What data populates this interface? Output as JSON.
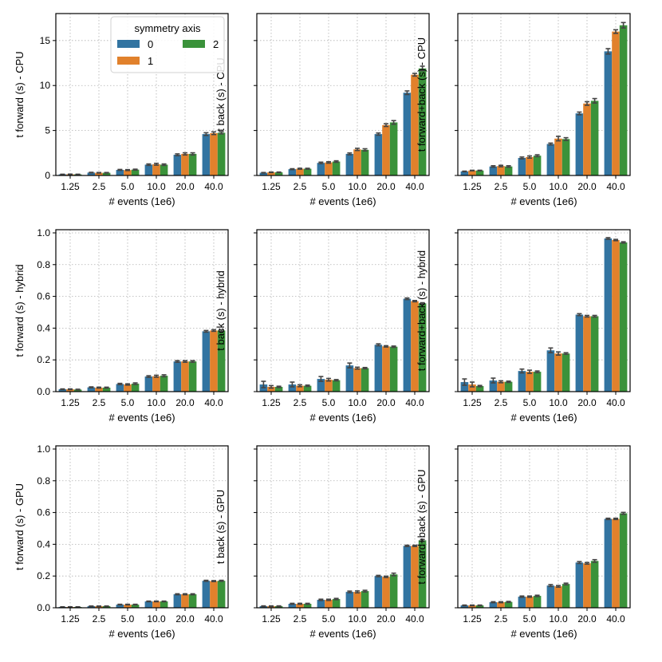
{
  "colors": {
    "0": "#3274a1",
    "1": "#e1812c",
    "2": "#3a923a",
    "errorbar": "#444444",
    "grid": "#b0b0b0"
  },
  "legend": {
    "title": "symmetry axis",
    "entries": [
      "0",
      "1",
      "2"
    ]
  },
  "chart_data": [
    {
      "type": "bar",
      "panel": "row1-col1",
      "title": "",
      "xlabel": "# events (1e6)",
      "ylabel": "t forward (s) - CPU",
      "categories": [
        "1.25",
        "2.5",
        "5.0",
        "10.0",
        "20.0",
        "40.0"
      ],
      "ylim": [
        0,
        18
      ],
      "yticks": [
        0,
        5,
        10,
        15
      ],
      "ytick_labels": [
        "0",
        "5",
        "10",
        "15"
      ],
      "series": [
        {
          "name": "0",
          "values": [
            0.12,
            0.32,
            0.62,
            1.2,
            2.3,
            4.6
          ],
          "err": [
            0.02,
            0.03,
            0.05,
            0.08,
            0.1,
            0.15
          ]
        },
        {
          "name": "1",
          "values": [
            0.13,
            0.3,
            0.6,
            1.25,
            2.4,
            4.7
          ],
          "err": [
            0.02,
            0.03,
            0.05,
            0.1,
            0.12,
            0.15
          ]
        },
        {
          "name": "2",
          "values": [
            0.12,
            0.3,
            0.65,
            1.2,
            2.4,
            4.75
          ],
          "err": [
            0.02,
            0.03,
            0.05,
            0.08,
            0.12,
            0.12
          ]
        }
      ]
    },
    {
      "type": "bar",
      "panel": "row1-col2",
      "title": "",
      "xlabel": "# events (1e6)",
      "ylabel": "t back (s) - CPU",
      "categories": [
        "1.25",
        "2.5",
        "5.0",
        "10.0",
        "20.0",
        "40.0"
      ],
      "ylim": [
        0,
        18
      ],
      "yticks": [
        0,
        5,
        10,
        15
      ],
      "ytick_labels": [],
      "series": [
        {
          "name": "0",
          "values": [
            0.3,
            0.7,
            1.4,
            2.4,
            4.6,
            9.2
          ],
          "err": [
            0.03,
            0.05,
            0.08,
            0.1,
            0.12,
            0.2
          ]
        },
        {
          "name": "1",
          "values": [
            0.35,
            0.75,
            1.45,
            2.9,
            5.6,
            11.2
          ],
          "err": [
            0.03,
            0.05,
            0.08,
            0.12,
            0.15,
            0.15
          ]
        },
        {
          "name": "2",
          "values": [
            0.35,
            0.75,
            1.55,
            2.85,
            5.9,
            11.9
          ],
          "err": [
            0.03,
            0.05,
            0.08,
            0.12,
            0.2,
            0.25
          ]
        }
      ]
    },
    {
      "type": "bar",
      "panel": "row1-col3",
      "title": "",
      "xlabel": "# events (1e6)",
      "ylabel": "t forward+back (s) - CPU",
      "categories": [
        "1.25",
        "2.5",
        "5.0",
        "10.0",
        "20.0",
        "40.0"
      ],
      "ylim": [
        0,
        18
      ],
      "yticks": [
        0,
        5,
        10,
        15
      ],
      "ytick_labels": [],
      "series": [
        {
          "name": "0",
          "values": [
            0.45,
            1.0,
            1.95,
            3.5,
            6.9,
            13.8
          ],
          "err": [
            0.03,
            0.08,
            0.1,
            0.1,
            0.15,
            0.3
          ]
        },
        {
          "name": "1",
          "values": [
            0.55,
            1.05,
            2.05,
            4.1,
            8.0,
            16.0
          ],
          "err": [
            0.03,
            0.08,
            0.12,
            0.25,
            0.2,
            0.2
          ]
        },
        {
          "name": "2",
          "values": [
            0.55,
            1.0,
            2.2,
            4.05,
            8.3,
            16.7
          ],
          "err": [
            0.03,
            0.08,
            0.1,
            0.15,
            0.25,
            0.3
          ]
        }
      ]
    },
    {
      "type": "bar",
      "panel": "row2-col1",
      "title": "",
      "xlabel": "# events (1e6)",
      "ylabel": "t forward (s) - hybrid",
      "categories": [
        "1.25",
        "2.5",
        "5.0",
        "10.0",
        "20.0",
        "40.0"
      ],
      "ylim": [
        0,
        1.02
      ],
      "yticks": [
        0,
        0.2,
        0.4,
        0.6,
        0.8,
        1.0
      ],
      "ytick_labels": [
        "0.0",
        "0.2",
        "0.4",
        "0.6",
        "0.8",
        "1.0"
      ],
      "series": [
        {
          "name": "0",
          "values": [
            0.015,
            0.027,
            0.048,
            0.095,
            0.19,
            0.38
          ],
          "err": [
            0.002,
            0.003,
            0.004,
            0.005,
            0.005,
            0.005
          ]
        },
        {
          "name": "1",
          "values": [
            0.015,
            0.025,
            0.045,
            0.097,
            0.19,
            0.385
          ],
          "err": [
            0.002,
            0.003,
            0.004,
            0.006,
            0.005,
            0.005
          ]
        },
        {
          "name": "2",
          "values": [
            0.013,
            0.025,
            0.05,
            0.1,
            0.19,
            0.385
          ],
          "err": [
            0.002,
            0.003,
            0.005,
            0.006,
            0.005,
            0.005
          ]
        }
      ]
    },
    {
      "type": "bar",
      "panel": "row2-col2",
      "title": "",
      "xlabel": "# events (1e6)",
      "ylabel": "t back (s) - hybrid",
      "categories": [
        "1.25",
        "2.5",
        "5.0",
        "10.0",
        "20.0",
        "40.0"
      ],
      "ylim": [
        0,
        1.02
      ],
      "yticks": [
        0,
        0.2,
        0.4,
        0.6,
        0.8,
        1.0
      ],
      "ytick_labels": [],
      "series": [
        {
          "name": "0",
          "values": [
            0.045,
            0.045,
            0.08,
            0.165,
            0.295,
            0.585
          ],
          "err": [
            0.02,
            0.015,
            0.015,
            0.015,
            0.006,
            0.005
          ]
        },
        {
          "name": "1",
          "values": [
            0.03,
            0.037,
            0.075,
            0.148,
            0.285,
            0.57
          ],
          "err": [
            0.008,
            0.006,
            0.008,
            0.006,
            0.004,
            0.004
          ]
        },
        {
          "name": "2",
          "values": [
            0.03,
            0.037,
            0.072,
            0.148,
            0.283,
            0.556
          ],
          "err": [
            0.004,
            0.004,
            0.004,
            0.004,
            0.004,
            0.004
          ]
        }
      ]
    },
    {
      "type": "bar",
      "panel": "row2-col3",
      "title": "",
      "xlabel": "# events (1e6)",
      "ylabel": "t forward+back (s) - hybrid",
      "categories": [
        "1.25",
        "2.5",
        "5.0",
        "10.0",
        "20.0",
        "40.0"
      ],
      "ylim": [
        0,
        1.02
      ],
      "yticks": [
        0,
        0.2,
        0.4,
        0.6,
        0.8,
        1.0
      ],
      "ytick_labels": [],
      "series": [
        {
          "name": "0",
          "values": [
            0.06,
            0.07,
            0.13,
            0.26,
            0.485,
            0.965
          ],
          "err": [
            0.02,
            0.015,
            0.012,
            0.015,
            0.006,
            0.005
          ]
        },
        {
          "name": "1",
          "values": [
            0.045,
            0.062,
            0.125,
            0.24,
            0.475,
            0.955
          ],
          "err": [
            0.015,
            0.006,
            0.01,
            0.01,
            0.005,
            0.004
          ]
        },
        {
          "name": "2",
          "values": [
            0.035,
            0.062,
            0.125,
            0.24,
            0.475,
            0.94
          ],
          "err": [
            0.004,
            0.004,
            0.005,
            0.005,
            0.005,
            0.004
          ]
        }
      ]
    },
    {
      "type": "bar",
      "panel": "row3-col1",
      "title": "",
      "xlabel": "# events (1e6)",
      "ylabel": "t forward (s) - GPU",
      "categories": [
        "1.25",
        "2.5",
        "5.0",
        "10.0",
        "20.0",
        "40.0"
      ],
      "ylim": [
        0,
        1.02
      ],
      "yticks": [
        0,
        0.2,
        0.4,
        0.6,
        0.8,
        1.0
      ],
      "ytick_labels": [
        "0.0",
        "0.2",
        "0.4",
        "0.6",
        "0.8",
        "1.0"
      ],
      "series": [
        {
          "name": "0",
          "values": [
            0.005,
            0.01,
            0.02,
            0.04,
            0.085,
            0.17
          ],
          "err": [
            0.001,
            0.001,
            0.002,
            0.002,
            0.003,
            0.003
          ]
        },
        {
          "name": "1",
          "values": [
            0.005,
            0.01,
            0.02,
            0.04,
            0.085,
            0.168
          ],
          "err": [
            0.001,
            0.001,
            0.002,
            0.002,
            0.003,
            0.003
          ]
        },
        {
          "name": "2",
          "values": [
            0.005,
            0.01,
            0.02,
            0.04,
            0.085,
            0.17
          ],
          "err": [
            0.001,
            0.001,
            0.002,
            0.002,
            0.003,
            0.003
          ]
        }
      ]
    },
    {
      "type": "bar",
      "panel": "row3-col2",
      "title": "",
      "xlabel": "# events (1e6)",
      "ylabel": "t back (s) - GPU",
      "categories": [
        "1.25",
        "2.5",
        "5.0",
        "10.0",
        "20.0",
        "40.0"
      ],
      "ylim": [
        0,
        1.02
      ],
      "yticks": [
        0,
        0.2,
        0.4,
        0.6,
        0.8,
        1.0
      ],
      "ytick_labels": [],
      "series": [
        {
          "name": "0",
          "values": [
            0.01,
            0.025,
            0.05,
            0.1,
            0.2,
            0.39
          ],
          "err": [
            0.002,
            0.003,
            0.004,
            0.005,
            0.004,
            0.004
          ]
        },
        {
          "name": "1",
          "values": [
            0.01,
            0.025,
            0.05,
            0.1,
            0.195,
            0.39
          ],
          "err": [
            0.002,
            0.003,
            0.004,
            0.006,
            0.004,
            0.004
          ]
        },
        {
          "name": "2",
          "values": [
            0.01,
            0.025,
            0.055,
            0.105,
            0.21,
            0.425
          ],
          "err": [
            0.002,
            0.003,
            0.004,
            0.005,
            0.008,
            0.006
          ]
        }
      ]
    },
    {
      "type": "bar",
      "panel": "row3-col3",
      "title": "",
      "xlabel": "# events (1e6)",
      "ylabel": "t forward+back (s) - GPU",
      "categories": [
        "1.25",
        "2.5",
        "5.0",
        "10.0",
        "20.0",
        "40.0"
      ],
      "ylim": [
        0,
        1.02
      ],
      "yticks": [
        0,
        0.2,
        0.4,
        0.6,
        0.8,
        1.0
      ],
      "ytick_labels": [],
      "series": [
        {
          "name": "0",
          "values": [
            0.015,
            0.035,
            0.07,
            0.14,
            0.285,
            0.56
          ],
          "err": [
            0.002,
            0.003,
            0.004,
            0.006,
            0.006,
            0.004
          ]
        },
        {
          "name": "1",
          "values": [
            0.015,
            0.035,
            0.07,
            0.135,
            0.28,
            0.56
          ],
          "err": [
            0.002,
            0.003,
            0.004,
            0.005,
            0.005,
            0.004
          ]
        },
        {
          "name": "2",
          "values": [
            0.015,
            0.037,
            0.075,
            0.15,
            0.295,
            0.595
          ],
          "err": [
            0.002,
            0.003,
            0.004,
            0.005,
            0.008,
            0.006
          ]
        }
      ]
    }
  ]
}
